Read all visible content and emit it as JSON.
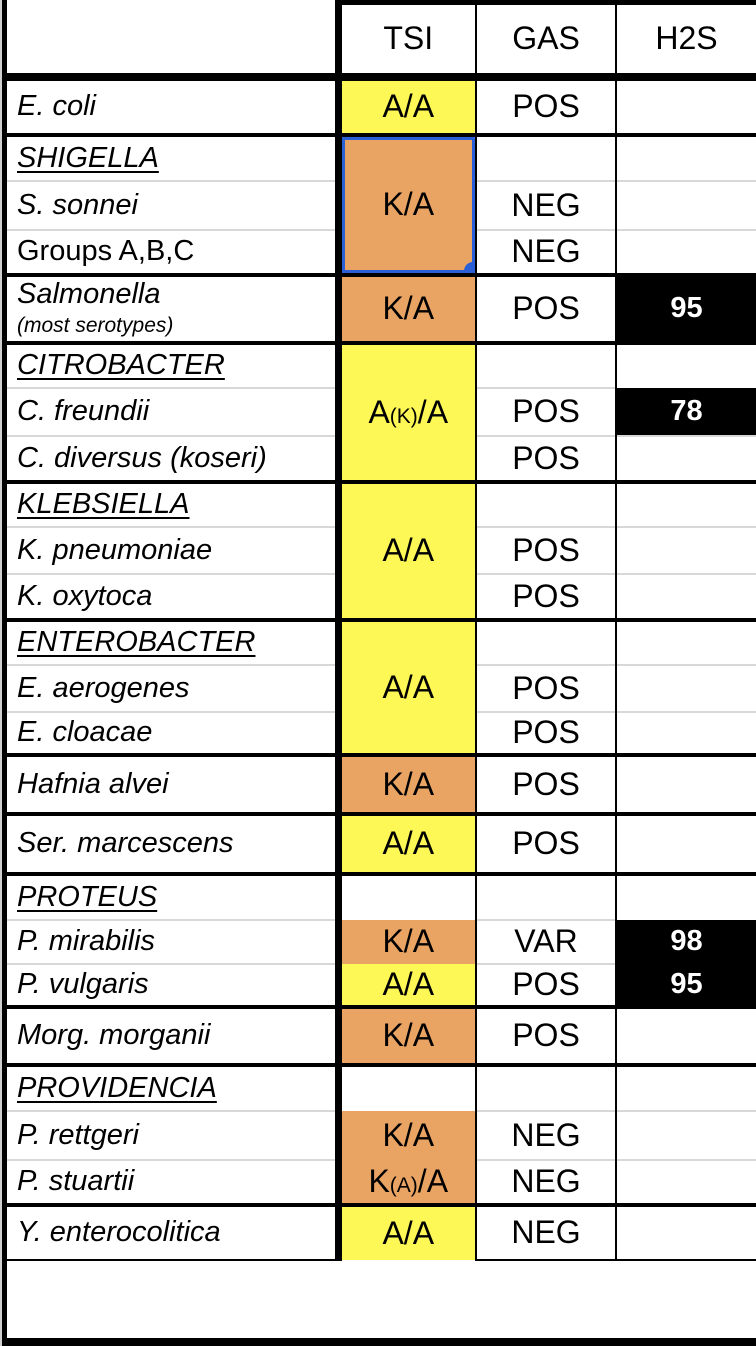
{
  "header": {
    "name": "",
    "tsi": "TSI",
    "gas": "GAS",
    "h2s": "H2S"
  },
  "colors": {
    "tsi_acid_yellow": "#FDF855",
    "tsi_alkaline_orange": "#E9A464",
    "h2s_positive_black": "#000000",
    "h2s_text_white": "#FFFFFF",
    "selection_blue": "#2B5FD6",
    "gridline_gray": "#D8D8D8"
  },
  "selection": {
    "selected_cell": "SHIGELLA TSI K/A",
    "handle": "bottom-right-circle"
  },
  "rows": [
    {
      "name": "E. coli",
      "tsi_pre": "A/A",
      "gas": "POS",
      "h2s": ""
    },
    {
      "name": "SHIGELLA",
      "tsi_pre": "K/A",
      "gas": "",
      "h2s": ""
    },
    {
      "name": "S. sonnei",
      "gas": "NEG",
      "h2s": ""
    },
    {
      "name": "Groups A,B,C",
      "gas": "NEG",
      "h2s": ""
    },
    {
      "name": "Salmonella",
      "name2": "(most serotypes)",
      "tsi_pre": "K/A",
      "gas": "POS",
      "h2s": "95"
    },
    {
      "name": "CITROBACTER",
      "tsi_pre": "A",
      "tsi_sub": "(K)",
      "tsi_post": "/A",
      "gas": "",
      "h2s": ""
    },
    {
      "name": "C. freundii",
      "gas": "POS",
      "h2s": "78"
    },
    {
      "name": "C. diversus (koseri)",
      "gas": "POS",
      "h2s": ""
    },
    {
      "name": "KLEBSIELLA",
      "tsi_pre": "A/A",
      "gas": "",
      "h2s": ""
    },
    {
      "name": "K. pneumoniae",
      "gas": "POS",
      "h2s": ""
    },
    {
      "name": "K. oxytoca",
      "gas": "POS",
      "h2s": ""
    },
    {
      "name": "ENTEROBACTER",
      "tsi_pre": "A/A",
      "gas": "",
      "h2s": ""
    },
    {
      "name": "E. aerogenes",
      "gas": "POS",
      "h2s": ""
    },
    {
      "name": "E. cloacae",
      "gas": "POS",
      "h2s": ""
    },
    {
      "name": "Hafnia alvei",
      "tsi_pre": "K/A",
      "gas": "POS",
      "h2s": ""
    },
    {
      "name": "Ser. marcescens",
      "tsi_pre": "A/A",
      "gas": "POS",
      "h2s": ""
    },
    {
      "name": "PROTEUS",
      "tsi_pre": "",
      "gas": "",
      "h2s": ""
    },
    {
      "name": "P. mirabilis",
      "tsi_pre": "K/A",
      "gas": "VAR",
      "h2s": "98"
    },
    {
      "name": "P. vulgaris",
      "tsi_pre": "A/A",
      "gas": "POS",
      "h2s": "95"
    },
    {
      "name": "Morg. morganii",
      "tsi_pre": "K/A",
      "gas": "POS",
      "h2s": ""
    },
    {
      "name": "PROVIDENCIA",
      "tsi_pre": "",
      "gas": "",
      "h2s": ""
    },
    {
      "name": "P. rettgeri",
      "tsi_pre": "K/A",
      "gas": "NEG",
      "h2s": ""
    },
    {
      "name": "P. stuartii",
      "tsi_pre": "K",
      "tsi_sub": "(A)",
      "tsi_post": "/A",
      "gas": "NEG",
      "h2s": ""
    },
    {
      "name": "Y. enterocolitica",
      "tsi_pre": "A/A",
      "gas": "NEG",
      "h2s": ""
    }
  ]
}
